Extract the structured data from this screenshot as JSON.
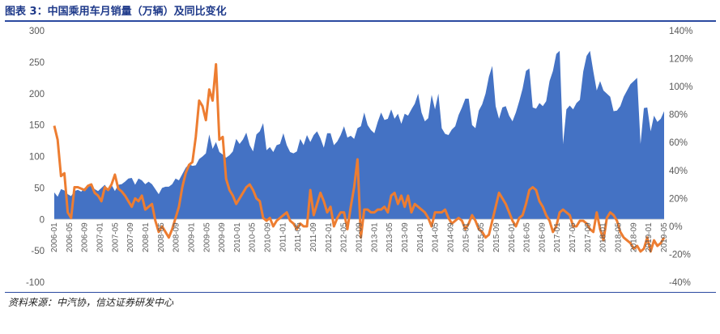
{
  "header": {
    "title": "图表 3：中国乘用车月销量（万辆）及同比变化"
  },
  "footer": {
    "source": "资料来源：中汽协，信达证券研发中心"
  },
  "colors": {
    "area": "#4472c4",
    "line": "#ed7d31",
    "title": "#1f3a8a"
  },
  "chart_data": {
    "type": "area",
    "title": "图表 3：中国乘用车月销量（万辆）及同比变化",
    "y_left": {
      "range": [
        -100,
        300
      ],
      "ticks": [
        "300",
        "250",
        "200",
        "150",
        "100",
        "50",
        "0",
        "-50",
        "-100"
      ]
    },
    "y_right": {
      "range": [
        -40,
        140
      ],
      "ticks": [
        "140%",
        "120%",
        "100%",
        "80%",
        "60%",
        "40%",
        "20%",
        "0%",
        "-20%",
        "-40%"
      ]
    },
    "x_ticks": [
      "2006-01",
      "2006-05",
      "2006-09",
      "2007-01",
      "2007-05",
      "2007-09",
      "2008-01",
      "2008-05",
      "2008-09",
      "2009-01",
      "2009-05",
      "2009-09",
      "2010-01",
      "2010-05",
      "2010-09",
      "2011-01",
      "2011-05",
      "2011-09",
      "2012-01",
      "2012-05",
      "2012-09",
      "2013-01",
      "2013-05",
      "2013-09",
      "2014-01",
      "2014-05",
      "2014-09",
      "2015-01",
      "2015-05",
      "2015-09",
      "2016-01",
      "2016-05",
      "2016-09",
      "2017-01",
      "2017-05",
      "2017-09",
      "2018-01",
      "2018-05",
      "2018-09",
      "2019-01",
      "2019-05"
    ],
    "grid": false,
    "series": [
      {
        "type": "area",
        "axis": "left",
        "values": [
          43,
          36,
          48,
          46,
          40,
          37,
          45,
          47,
          44,
          50,
          53,
          54,
          48,
          45,
          50,
          55,
          47,
          55,
          45,
          55,
          56,
          60,
          65,
          66,
          55,
          65,
          62,
          56,
          60,
          56,
          48,
          40,
          50,
          52,
          52,
          56,
          65,
          62,
          72,
          82,
          88,
          85,
          86,
          96,
          100,
          105,
          135,
          112,
          123,
          107,
          103,
          98,
          102,
          108,
          128,
          120,
          127,
          138,
          118,
          108,
          135,
          140,
          153,
          110,
          115,
          107,
          118,
          120,
          137,
          118,
          107,
          105,
          108,
          128,
          118,
          134,
          123,
          134,
          140,
          129,
          114,
          137,
          137,
          118,
          124,
          134,
          148,
          130,
          133,
          128,
          145,
          148,
          170,
          150,
          142,
          137,
          155,
          170,
          158,
          160,
          175,
          160,
          168,
          152,
          168,
          165,
          175,
          184,
          200,
          170,
          156,
          161,
          198,
          175,
          200,
          145,
          136,
          134,
          143,
          148,
          166,
          178,
          192,
          192,
          150,
          145,
          173,
          183,
          200,
          227,
          244,
          180,
          160,
          178,
          180,
          165,
          156,
          170,
          188,
          208,
          236,
          240,
          178,
          176,
          185,
          180,
          188,
          220,
          236,
          263,
          268,
          120,
          175,
          181,
          175,
          185,
          190,
          235,
          260,
          268,
          235,
          205,
          220,
          205,
          200,
          195,
          172,
          173,
          180,
          195,
          205,
          215,
          220,
          225,
          120,
          177,
          178,
          140,
          165,
          155,
          160,
          172
        ]
      },
      {
        "type": "line",
        "axis": "right",
        "values": [
          72,
          62,
          36,
          38,
          10,
          6,
          28,
          28,
          27,
          26,
          29,
          30,
          24,
          22,
          18,
          28,
          26,
          30,
          37,
          27,
          25,
          22,
          18,
          14,
          20,
          18,
          22,
          12,
          14,
          16,
          4,
          -4,
          0,
          -4,
          -8,
          -2,
          6,
          14,
          28,
          38,
          44,
          46,
          64,
          90,
          86,
          76,
          98,
          90,
          116,
          62,
          64,
          34,
          26,
          22,
          16,
          20,
          24,
          28,
          30,
          26,
          20,
          18,
          6,
          4,
          6,
          0,
          4,
          6,
          8,
          10,
          4,
          2,
          -2,
          2,
          0,
          0,
          26,
          8,
          16,
          24,
          18,
          10,
          14,
          0,
          6,
          10,
          10,
          -2,
          14,
          28,
          48,
          -8,
          12,
          12,
          10,
          10,
          12,
          12,
          14,
          10,
          22,
          24,
          16,
          22,
          14,
          22,
          10,
          16,
          14,
          12,
          10,
          6,
          0,
          10,
          10,
          10,
          12,
          6,
          2,
          4,
          6,
          4,
          -2,
          2,
          8,
          4,
          -2,
          -4,
          -8,
          -6,
          4,
          14,
          24,
          20,
          16,
          10,
          4,
          0,
          6,
          8,
          16,
          26,
          28,
          26,
          18,
          14,
          8,
          4,
          -4,
          0,
          10,
          12,
          10,
          8,
          0,
          0,
          4,
          4,
          2,
          -2,
          -4,
          10,
          -2,
          -10,
          6,
          10,
          8,
          4,
          -4,
          -8,
          -10,
          -12,
          -16,
          -14,
          -18,
          -16,
          -8,
          -18,
          -10,
          -14,
          -12,
          -8
        ]
      }
    ]
  }
}
